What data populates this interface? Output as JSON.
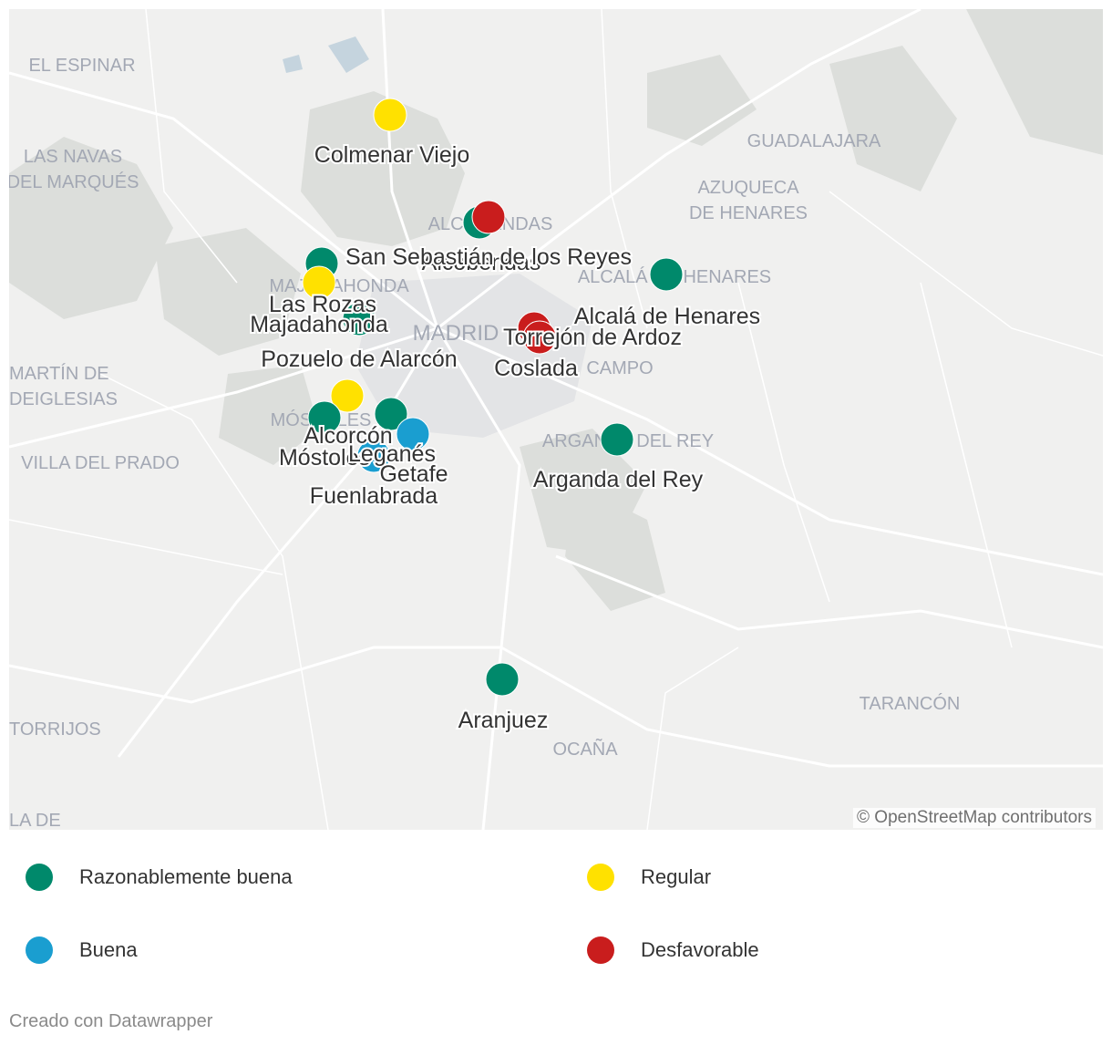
{
  "map": {
    "attribution": "© OpenStreetMap contributors",
    "base_labels": [
      {
        "id": "el-espinar",
        "lines": [
          "EL ESPINAR"
        ]
      },
      {
        "id": "las-navas",
        "lines": [
          "LAS NAVAS",
          "DEL MARQUÉS"
        ]
      },
      {
        "id": "guadalajara",
        "lines": [
          "GUADALAJARA"
        ]
      },
      {
        "id": "azuqueca",
        "lines": [
          "AZUQUECA",
          "DE HENARES"
        ]
      },
      {
        "id": "alcobendas-base",
        "lines": [
          "ALCOBENDAS"
        ]
      },
      {
        "id": "majadahonda-base",
        "lines": [
          "MAJADAHONDA"
        ]
      },
      {
        "id": "madrid",
        "lines": [
          "MADRID"
        ]
      },
      {
        "id": "alcala-base",
        "lines": [
          "ALCALÁ DE HENARES"
        ]
      },
      {
        "id": "arganda-base",
        "lines": [
          "ARGANDA DEL REY"
        ]
      },
      {
        "id": "campo",
        "lines": [
          "CAMPO"
        ]
      },
      {
        "id": "san-martin",
        "lines": [
          "MARTÍN DE",
          "DEIGLESIAS"
        ]
      },
      {
        "id": "mostoles-base",
        "lines": [
          "MÓSTOLES"
        ]
      },
      {
        "id": "villa-del-prado",
        "lines": [
          "VILLA DEL PRADO"
        ]
      },
      {
        "id": "torrijos",
        "lines": [
          "TORRIJOS"
        ]
      },
      {
        "id": "tarancon",
        "lines": [
          "TARANCÓN"
        ]
      },
      {
        "id": "ocana",
        "lines": [
          "OCAÑA"
        ]
      },
      {
        "id": "la-de",
        "lines": [
          "LA DE"
        ]
      }
    ],
    "markers": [
      {
        "id": "colmenar-viejo",
        "label": "Colmenar Viejo",
        "category": "Regular"
      },
      {
        "id": "alcobendas",
        "label": "Alcobendas",
        "category": "Razonablemente buena"
      },
      {
        "id": "san-sebastian",
        "label": "San Sebastián de los Reyes",
        "category": "Desfavorable"
      },
      {
        "id": "las-rozas",
        "label": "Las Rozas",
        "category": "Razonablemente buena"
      },
      {
        "id": "majadahonda",
        "label": "Majadahonda",
        "category": "Regular"
      },
      {
        "id": "pozuelo",
        "label": "Pozuelo de Alarcón",
        "category": "Razonablemente buena"
      },
      {
        "id": "alcala",
        "label": "Alcalá de Henares",
        "category": "Razonablemente buena"
      },
      {
        "id": "torrejon",
        "label": "Torrejón de Ardoz",
        "category": "Desfavorable"
      },
      {
        "id": "coslada",
        "label": "Coslada",
        "category": "Desfavorable"
      },
      {
        "id": "alcorcon",
        "label": "Alcorcón",
        "category": "Regular"
      },
      {
        "id": "mostoles",
        "label": "Móstoles",
        "category": "Razonablemente buena"
      },
      {
        "id": "leganes",
        "label": "Leganés",
        "category": "Razonablemente buena"
      },
      {
        "id": "getafe",
        "label": "Getafe",
        "category": "Buena"
      },
      {
        "id": "fuenlabrada",
        "label": "Fuenlabrada",
        "category": "Buena"
      },
      {
        "id": "arganda",
        "label": "Arganda del Rey",
        "category": "Razonablemente buena"
      },
      {
        "id": "aranjuez",
        "label": "Aranjuez",
        "category": "Razonablemente buena"
      }
    ]
  },
  "legend": {
    "items": [
      {
        "label": "Razonablemente buena",
        "color": "#00896b"
      },
      {
        "label": "Regular",
        "color": "#ffe100"
      },
      {
        "label": "Buena",
        "color": "#1a9ed0"
      },
      {
        "label": "Desfavorable",
        "color": "#c91d1d"
      }
    ]
  },
  "colors": {
    "Razonablemente buena": "#00896b",
    "Regular": "#ffe100",
    "Buena": "#1a9ed0",
    "Desfavorable": "#c91d1d"
  },
  "credit": "Creado con Datawrapper"
}
